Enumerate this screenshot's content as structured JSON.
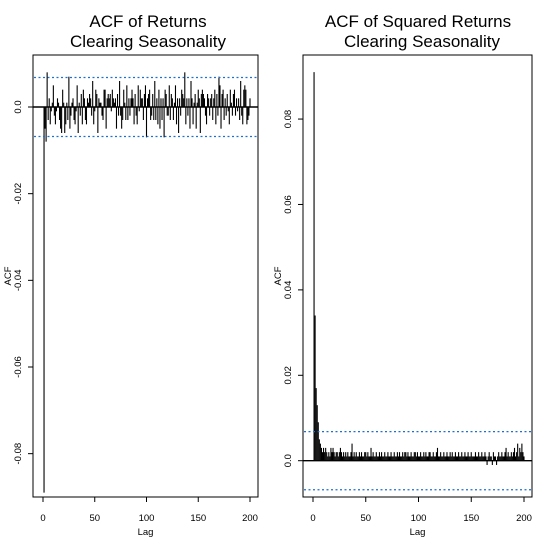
{
  "chart_data": [
    {
      "type": "bar",
      "title": [
        "ACF of Returns",
        "Clearing Seasonality"
      ],
      "xlabel": "Lag",
      "ylabel": "ACF",
      "xlim": [
        0,
        200
      ],
      "ylim": [
        -0.09,
        0.012
      ],
      "xticks": [
        0,
        50,
        100,
        150,
        200
      ],
      "yticks": [
        -0.08,
        -0.06,
        -0.04,
        -0.02,
        0.0
      ],
      "ytick_labels": [
        "-0.08",
        "-0.06",
        "-0.04",
        "-0.02",
        "0.0"
      ],
      "conf_band": 0.0068,
      "lags": [
        1,
        2,
        3,
        4,
        5,
        6,
        7,
        8,
        9,
        10,
        11,
        12,
        13,
        14,
        15,
        16,
        17,
        18,
        19,
        20,
        21,
        22,
        23,
        24,
        25,
        26,
        27,
        28,
        29,
        30,
        31,
        32,
        33,
        34,
        35,
        36,
        37,
        38,
        39,
        40,
        41,
        42,
        43,
        44,
        45,
        46,
        47,
        48,
        49,
        50,
        51,
        52,
        53,
        54,
        55,
        56,
        57,
        58,
        59,
        60,
        61,
        62,
        63,
        64,
        65,
        66,
        67,
        68,
        69,
        70,
        71,
        72,
        73,
        74,
        75,
        76,
        77,
        78,
        79,
        80,
        81,
        82,
        83,
        84,
        85,
        86,
        87,
        88,
        89,
        90,
        91,
        92,
        93,
        94,
        95,
        96,
        97,
        98,
        99,
        100,
        101,
        102,
        103,
        104,
        105,
        106,
        107,
        108,
        109,
        110,
        111,
        112,
        113,
        114,
        115,
        116,
        117,
        118,
        119,
        120,
        121,
        122,
        123,
        124,
        125,
        126,
        127,
        128,
        129,
        130,
        131,
        132,
        133,
        134,
        135,
        136,
        137,
        138,
        139,
        140,
        141,
        142,
        143,
        144,
        145,
        146,
        147,
        148,
        149,
        150,
        151,
        152,
        153,
        154,
        155,
        156,
        157,
        158,
        159,
        160,
        161,
        162,
        163,
        164,
        165,
        166,
        167,
        168,
        169,
        170,
        171,
        172,
        173,
        174,
        175,
        176,
        177,
        178,
        179,
        180,
        181,
        182,
        183,
        184,
        185,
        186,
        187,
        188,
        189,
        190,
        191,
        192,
        193,
        194,
        195,
        196,
        197,
        198,
        199,
        200
      ],
      "values": [
        -0.089,
        -0.005,
        -0.008,
        0.008,
        -0.003,
        0.002,
        -0.004,
        -0.001,
        0.001,
        0.005,
        -0.002,
        -0.004,
        -0.001,
        0.002,
        0.001,
        -0.003,
        -0.005,
        -0.006,
        0.004,
        0.001,
        -0.006,
        -0.004,
        0.001,
        -0.003,
        0.007,
        -0.005,
        -0.002,
        0.001,
        0.002,
        -0.003,
        -0.004,
        -0.001,
        0.005,
        -0.006,
        0.001,
        -0.002,
        0.003,
        -0.004,
        0.004,
        0.002,
        -0.003,
        -0.004,
        0.002,
        0.001,
        0.003,
        0.002,
        -0.002,
        0.006,
        -0.004,
        -0.001,
        0.004,
        0.003,
        -0.006,
        0.002,
        0.001,
        0.001,
        -0.002,
        -0.003,
        0.004,
        0.004,
        -0.005,
        0.002,
        0.003,
        0.002,
        0.003,
        -0.001,
        0.004,
        0.002,
        0.001,
        0.002,
        -0.005,
        0.003,
        -0.002,
        0.006,
        -0.002,
        -0.005,
        -0.003,
        0.004,
        0.001,
        -0.003,
        0.005,
        -0.003,
        0.002,
        -0.002,
        0.002,
        0.004,
        0.002,
        -0.004,
        0.003,
        -0.002,
        -0.004,
        0.005,
        -0.001,
        0.004,
        0.002,
        0.002,
        -0.003,
        0.003,
        0.005,
        -0.007,
        0.002,
        0.003,
        0.004,
        -0.003,
        -0.002,
        0.003,
        -0.003,
        0.006,
        -0.003,
        0.002,
        -0.004,
        0.004,
        -0.005,
        0.002,
        -0.003,
        0.002,
        -0.007,
        0.004,
        0.003,
        -0.002,
        -0.002,
        0.005,
        -0.003,
        0.003,
        0.002,
        -0.003,
        0.001,
        0.005,
        -0.004,
        0.002,
        -0.006,
        0.002,
        -0.002,
        0.004,
        0.003,
        0.002,
        0.008,
        -0.004,
        0.002,
        -0.002,
        0.002,
        -0.005,
        0.006,
        0.002,
        -0.004,
        0.001,
        0.003,
        -0.005,
        0.001,
        0.004,
        0.002,
        -0.006,
        0.003,
        0.004,
        0.003,
        0.002,
        -0.002,
        -0.004,
        0.003,
        0.002,
        -0.002,
        0.002,
        0.003,
        -0.003,
        0.002,
        0.004,
        -0.004,
        0.003,
        -0.002,
        0.007,
        0.005,
        -0.005,
        0.003,
        0.004,
        -0.003,
        0.002,
        -0.002,
        0.003,
        -0.001,
        -0.004,
        0.004,
        0.001,
        -0.002,
        0.003,
        0.004,
        -0.002,
        0.002,
        -0.001,
        0.002,
        -0.003,
        0.006,
        -0.002,
        -0.004,
        0.004,
        0.005,
        0.004,
        -0.004,
        -0.003,
        -0.002,
        0.002
      ]
    },
    {
      "type": "bar",
      "title": [
        "ACF of Squared Returns",
        "Clearing Seasonality"
      ],
      "xlabel": "Lag",
      "ylabel": "ACF",
      "xlim": [
        0,
        200
      ],
      "ylim": [
        -0.0085,
        0.095
      ],
      "xticks": [
        0,
        50,
        100,
        150,
        200
      ],
      "yticks": [
        0.0,
        0.02,
        0.04,
        0.06,
        0.08
      ],
      "ytick_labels": [
        "0.0",
        "0.02",
        "0.04",
        "0.06",
        "0.08"
      ],
      "conf_band": 0.0068,
      "lags": [
        1,
        2,
        3,
        4,
        5,
        6,
        7,
        8,
        9,
        10,
        11,
        12,
        13,
        14,
        15,
        16,
        17,
        18,
        19,
        20,
        21,
        22,
        23,
        24,
        25,
        26,
        27,
        28,
        29,
        30,
        31,
        32,
        33,
        34,
        35,
        36,
        37,
        38,
        39,
        40,
        41,
        42,
        43,
        44,
        45,
        46,
        47,
        48,
        49,
        50,
        51,
        52,
        53,
        54,
        55,
        56,
        57,
        58,
        59,
        60,
        61,
        62,
        63,
        64,
        65,
        66,
        67,
        68,
        69,
        70,
        71,
        72,
        73,
        74,
        75,
        76,
        77,
        78,
        79,
        80,
        81,
        82,
        83,
        84,
        85,
        86,
        87,
        88,
        89,
        90,
        91,
        92,
        93,
        94,
        95,
        96,
        97,
        98,
        99,
        100,
        101,
        102,
        103,
        104,
        105,
        106,
        107,
        108,
        109,
        110,
        111,
        112,
        113,
        114,
        115,
        116,
        117,
        118,
        119,
        120,
        121,
        122,
        123,
        124,
        125,
        126,
        127,
        128,
        129,
        130,
        131,
        132,
        133,
        134,
        135,
        136,
        137,
        138,
        139,
        140,
        141,
        142,
        143,
        144,
        145,
        146,
        147,
        148,
        149,
        150,
        151,
        152,
        153,
        154,
        155,
        156,
        157,
        158,
        159,
        160,
        161,
        162,
        163,
        164,
        165,
        166,
        167,
        168,
        169,
        170,
        171,
        172,
        173,
        174,
        175,
        176,
        177,
        178,
        179,
        180,
        181,
        182,
        183,
        184,
        185,
        186,
        187,
        188,
        189,
        190,
        191,
        192,
        193,
        194,
        195,
        196,
        197,
        198,
        199,
        200
      ],
      "values": [
        0.091,
        0.034,
        0.017,
        0.013,
        0.009,
        0.005,
        0.004,
        0.003,
        0.002,
        0.003,
        0.002,
        0.003,
        0.002,
        0.001,
        0.002,
        0.001,
        0.003,
        0.002,
        0.003,
        0.002,
        0.001,
        0.002,
        0.002,
        0.001,
        0.002,
        0.003,
        0.002,
        0.001,
        0.002,
        0.001,
        0.002,
        0.001,
        0.002,
        0.001,
        0.001,
        0.002,
        0.004,
        0.001,
        0.002,
        0.001,
        0.002,
        0.001,
        0.001,
        0.002,
        0.001,
        0.002,
        0.001,
        0.001,
        0.002,
        0.002,
        0.001,
        0.002,
        0.001,
        0.001,
        0.003,
        0.001,
        0.002,
        0.001,
        0.001,
        0.002,
        0.001,
        0.001,
        0.002,
        0.001,
        0.002,
        0.001,
        0.001,
        0.002,
        0.001,
        0.001,
        0.002,
        0.001,
        0.001,
        0.002,
        0.001,
        0.001,
        0.002,
        0.001,
        0.001,
        0.002,
        0.001,
        0.002,
        0.001,
        0.001,
        0.002,
        0.001,
        0.002,
        0.002,
        0.001,
        0.002,
        0.001,
        0.001,
        0.002,
        0.001,
        0.001,
        0.002,
        0.002,
        0.001,
        0.002,
        0.001,
        0.001,
        0.002,
        0.001,
        0.001,
        0.002,
        0.001,
        0.002,
        0.001,
        0.001,
        0.002,
        0.002,
        0.001,
        0.001,
        0.002,
        0.001,
        0.001,
        0.002,
        0.003,
        0.001,
        0.001,
        0.002,
        0.001,
        0.001,
        0.002,
        0.001,
        0.001,
        0.002,
        0.001,
        0.001,
        0.002,
        0.001,
        0.002,
        0.001,
        0.001,
        0.002,
        0.001,
        0.001,
        0.002,
        0.001,
        0.001,
        0.002,
        0.001,
        0.001,
        0.002,
        0.001,
        0.001,
        0.002,
        0.001,
        0.001,
        0.002,
        0.001,
        0.001,
        0.001,
        0.002,
        0.001,
        0.001,
        0.002,
        0.001,
        0.001,
        0.002,
        0.001,
        0.001,
        0.002,
        0.001,
        -0.001,
        0.001,
        0.002,
        0.001,
        0.001,
        -0.001,
        0.002,
        0.001,
        0.001,
        -0.001,
        0.001,
        0.002,
        0.001,
        0.001,
        0.002,
        0.001,
        0.001,
        0.002,
        0.003,
        0.001,
        0.002,
        0.001,
        0.001,
        0.002,
        0.001,
        0.002,
        0.003,
        0.001,
        0.002,
        0.004,
        0.001,
        0.003,
        0.002,
        0.004,
        0.002,
        0.001,
        0.005,
        0.003,
        -0.001,
        0.002
      ]
    }
  ]
}
